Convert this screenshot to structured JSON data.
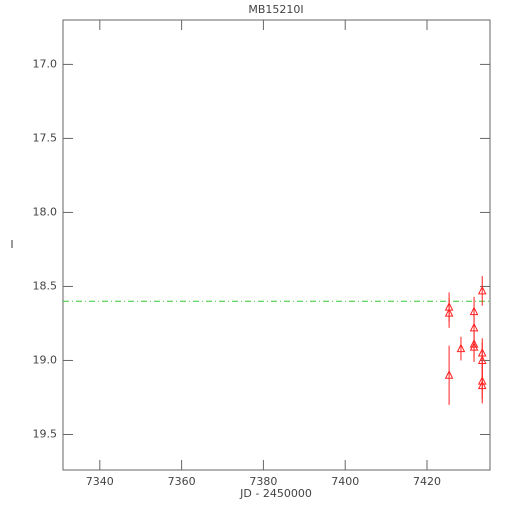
{
  "chart_data": {
    "type": "scatter",
    "title": "MB15210I",
    "x_label": "JD - 2450000",
    "y_label": "I",
    "xlim": [
      7331,
      7435.4
    ],
    "xticks": [
      7340,
      7360,
      7380,
      7400,
      7420
    ],
    "ylim": [
      16.7,
      19.74
    ],
    "y_inverted": true,
    "yticks": [
      {
        "value": 17,
        "label": "17.0"
      },
      17.5,
      {
        "value": 18,
        "label": "18.0"
      },
      18.5,
      {
        "value": 19,
        "label": "19.0"
      },
      19.5
    ],
    "hline": {
      "value": 18.6,
      "color": "#33cc33"
    },
    "series": [
      {
        "name": "I",
        "color": "#ff2020",
        "x": [
          7425.4,
          7425.4,
          7425.4,
          7428.3,
          7431.5,
          7431.5,
          7431.5,
          7431.5,
          7433.5,
          7433.5,
          7433.5,
          7433.5,
          7433.5
        ],
        "values": [
          18.64,
          18.68,
          19.1,
          18.92,
          18.67,
          18.78,
          18.89,
          18.91,
          18.53,
          18.95,
          19.0,
          19.14,
          19.17
        ],
        "errors": [
          0.1,
          0.1,
          0.2,
          0.08,
          0.1,
          0.1,
          0.1,
          0.1,
          0.1,
          0.1,
          0.12,
          0.12,
          0.12
        ]
      }
    ]
  }
}
